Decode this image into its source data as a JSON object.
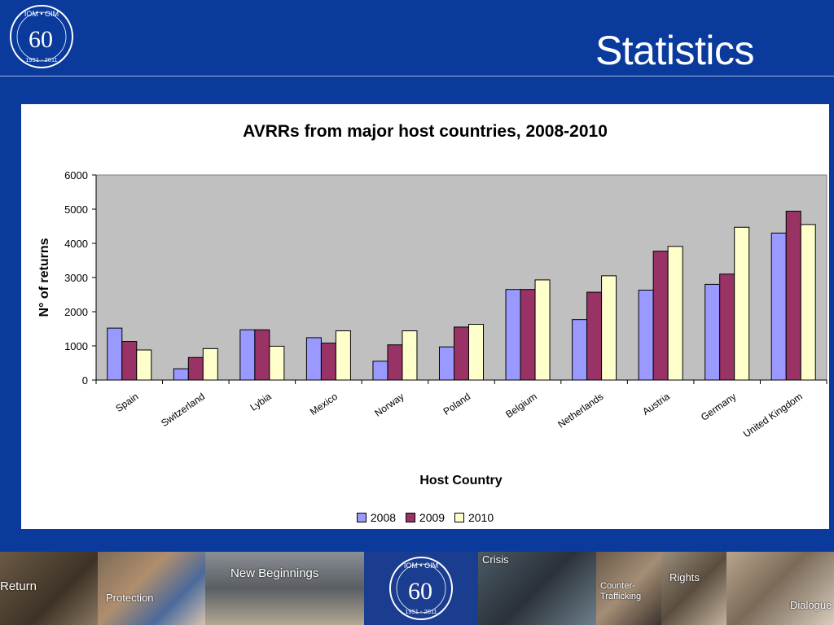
{
  "header": {
    "title": "Statistics",
    "logo": {
      "top_text": "IOM • OIM",
      "number": "60",
      "years": "1951 - 2011"
    }
  },
  "chart_data": {
    "type": "bar",
    "title": "AVRRs from major host countries, 2008-2010",
    "xlabel": "Host Country",
    "ylabel": "N° of returns",
    "ylim": [
      0,
      6000
    ],
    "yticks": [
      0,
      1000,
      2000,
      3000,
      4000,
      5000,
      6000
    ],
    "grid": false,
    "legend_position": "bottom-center",
    "categories": [
      "Spain",
      "Switzerland",
      "Lybia",
      "Mexico",
      "Norway",
      "Poland",
      "Belgium",
      "Netherlands",
      "Austria",
      "Germany",
      "United Kingdom"
    ],
    "series": [
      {
        "name": "2008",
        "color": "#9999ff",
        "values": [
          1520,
          330,
          1470,
          1240,
          550,
          970,
          2650,
          1770,
          2630,
          2800,
          4300
        ]
      },
      {
        "name": "2009",
        "color": "#993366",
        "values": [
          1130,
          660,
          1470,
          1080,
          1030,
          1550,
          2650,
          2570,
          3770,
          3100,
          4940
        ]
      },
      {
        "name": "2010",
        "color": "#ffffcc",
        "values": [
          880,
          920,
          990,
          1440,
          1440,
          1630,
          2930,
          3050,
          3910,
          4470,
          4550
        ]
      }
    ],
    "plot_background": "#c0c0c0"
  },
  "bottom_strip": {
    "labels": [
      "Return",
      "Protection",
      "New Beginnings",
      "Crisis",
      "Counter-Trafficking",
      "Rights",
      "Dialogue"
    ],
    "logo": {
      "top_text": "IOM • OIM",
      "number": "60",
      "years": "1951 - 2011"
    }
  }
}
